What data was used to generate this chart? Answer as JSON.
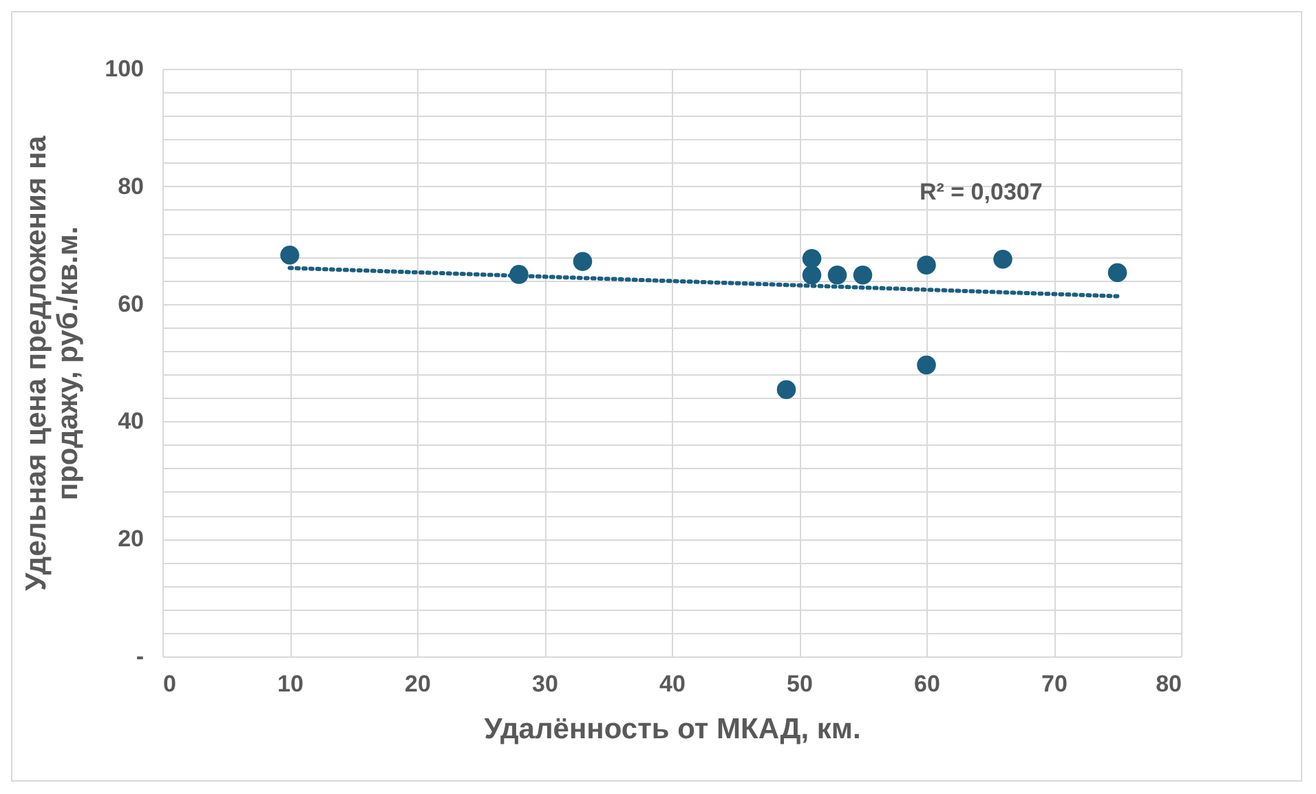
{
  "chart_data": {
    "type": "scatter",
    "xlabel": "Удалённость от МКАД, км.",
    "ylabel": "Удельная цена предложения на продажу, руб./кв.м.",
    "x": [
      10,
      28,
      33,
      49,
      51,
      51,
      53,
      55,
      60,
      60,
      66,
      75
    ],
    "series": [
      {
        "type": "scatter",
        "color": "#1b5e80",
        "values": [
          68.3,
          65,
          67.2,
          45.4,
          67.7,
          64.9,
          64.9,
          64.9,
          66.6,
          49.6,
          67.6,
          65.3
        ]
      },
      {
        "type": "line",
        "color": "#1b5e80",
        "x": [
          10,
          75
        ],
        "values": [
          66.1,
          61.3
        ],
        "line_style": "dotted",
        "marker": "none"
      }
    ],
    "annotations": [
      "R² = 0,0307"
    ],
    "marker": "circle",
    "grid": true,
    "xlim": [
      0,
      80
    ],
    "xticks": [
      0,
      10,
      20,
      30,
      40,
      50,
      60,
      70,
      80
    ],
    "ylim": [
      0,
      100
    ],
    "yticks": [
      {
        "value": 0,
        "label": "-"
      },
      {
        "value": 4,
        "label": null
      },
      {
        "value": 8,
        "label": null
      },
      {
        "value": 12,
        "label": null
      },
      {
        "value": 16,
        "label": null
      },
      20,
      {
        "value": 24,
        "label": null
      },
      {
        "value": 28,
        "label": null
      },
      {
        "value": 32,
        "label": null
      },
      {
        "value": 36,
        "label": null
      },
      40,
      {
        "value": 44,
        "label": null
      },
      {
        "value": 48,
        "label": null
      },
      {
        "value": 52,
        "label": null
      },
      {
        "value": 56,
        "label": null
      },
      60,
      {
        "value": 64,
        "label": null
      },
      {
        "value": 68,
        "label": null
      },
      {
        "value": 72,
        "label": null
      },
      {
        "value": 76,
        "label": null
      },
      80,
      {
        "value": 84,
        "label": null
      },
      {
        "value": 88,
        "label": null
      },
      {
        "value": 92,
        "label": null
      },
      {
        "value": 96,
        "label": null
      },
      100
    ]
  }
}
